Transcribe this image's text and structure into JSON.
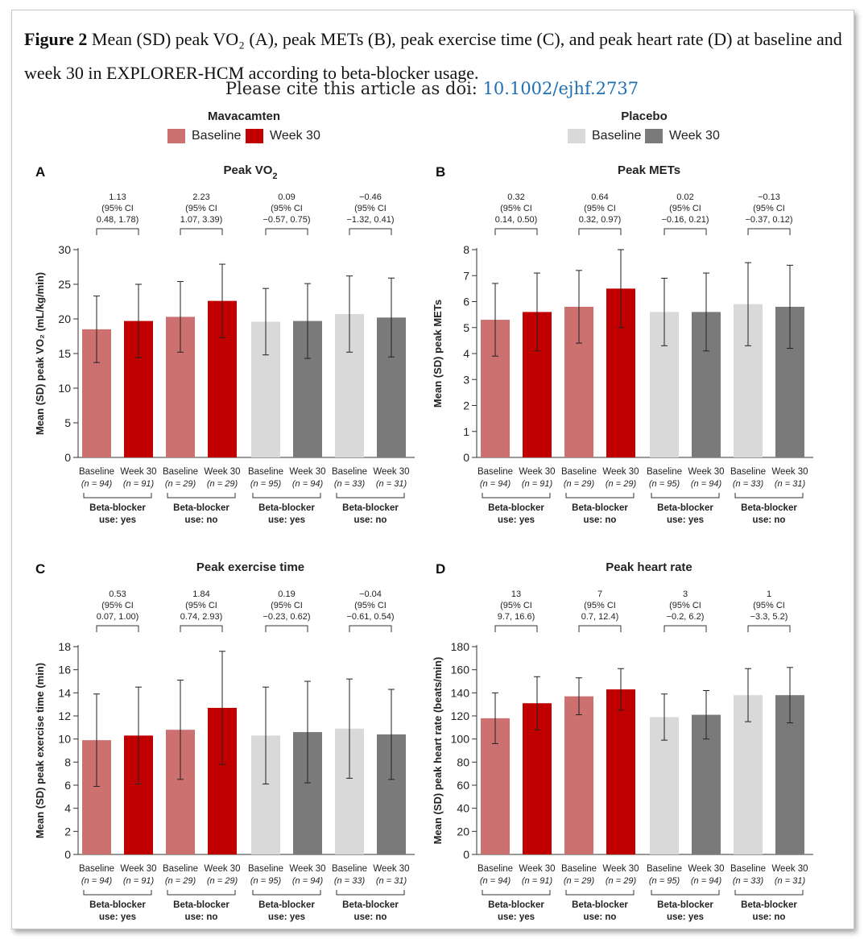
{
  "caption": {
    "label": "Figure 2",
    "text": " Mean (SD) peak VO₂ (A), peak METs (B), peak exercise time (C), and peak heart rate (D) at baseline and week 30 in EXPLORER-HCM according to beta-blocker usage.",
    "cite_prefix": "Please cite this article as doi: ",
    "doi": "10.1002/ejhf.2737"
  },
  "legend": {
    "groups": [
      {
        "title": "Mavacamten",
        "items": [
          {
            "label": "Baseline",
            "color": "#cc7070"
          },
          {
            "label": "Week 30",
            "color": "#c00000"
          }
        ]
      },
      {
        "title": "Placebo",
        "items": [
          {
            "label": "Baseline",
            "color": "#d9d9d9"
          },
          {
            "label": "Week 30",
            "color": "#7a7a7a"
          }
        ]
      }
    ]
  },
  "groups_shared": {
    "bar_labels": [
      "Baseline",
      "Week 30",
      "Baseline",
      "Week 30",
      "Baseline",
      "Week 30",
      "Baseline",
      "Week 30"
    ],
    "n_labels": [
      "(n = 94)",
      "(n = 91)",
      "(n = 29)",
      "(n = 29)",
      "(n = 95)",
      "(n = 94)",
      "(n = 33)",
      "(n = 31)"
    ],
    "group_labels": [
      [
        "Beta-blocker",
        "use: yes"
      ],
      [
        "Beta-blocker",
        "use: no"
      ],
      [
        "Beta-blocker",
        "use: yes"
      ],
      [
        "Beta-blocker",
        "use: no"
      ]
    ],
    "bar_colors": [
      "#cc7070",
      "#c00000",
      "#cc7070",
      "#c00000",
      "#d9d9d9",
      "#7a7a7a",
      "#d9d9d9",
      "#7a7a7a"
    ]
  },
  "chart_data": [
    {
      "panel": "A",
      "title": "Peak VO",
      "title_sub": "2",
      "type": "bar",
      "ylabel": "Mean (SD) peak VO₂ (mL/kg/min)",
      "ylim": [
        0,
        30
      ],
      "yticks": [
        0,
        5,
        10,
        15,
        20,
        25,
        30
      ],
      "values": [
        18.5,
        19.7,
        20.3,
        22.6,
        19.6,
        19.7,
        20.7,
        20.2
      ],
      "sd": [
        4.8,
        5.3,
        5.1,
        5.3,
        4.8,
        5.4,
        5.5,
        5.7
      ],
      "annotations": [
        [
          "1.13",
          "(95% CI",
          "0.48, 1.78)"
        ],
        [
          "2.23",
          "(95% CI",
          "1.07, 3.39)"
        ],
        [
          "0.09",
          "(95% CI",
          "−0.57, 0.75)"
        ],
        [
          "−0.46",
          "(95% CI",
          "−1.32, 0.41)"
        ]
      ]
    },
    {
      "panel": "B",
      "title": "Peak METs",
      "title_sub": "",
      "type": "bar",
      "ylabel": "Mean (SD) peak METs",
      "ylim": [
        0,
        8
      ],
      "yticks": [
        0,
        1,
        2,
        3,
        4,
        5,
        6,
        7,
        8
      ],
      "values": [
        5.3,
        5.6,
        5.8,
        6.5,
        5.6,
        5.6,
        5.9,
        5.8
      ],
      "sd": [
        1.4,
        1.5,
        1.4,
        1.5,
        1.3,
        1.5,
        1.6,
        1.6
      ],
      "annotations": [
        [
          "0.32",
          "(95% CI",
          "0.14, 0.50)"
        ],
        [
          "0.64",
          "(95% CI",
          "0.32, 0.97)"
        ],
        [
          "0.02",
          "(95% CI",
          "−0.16, 0.21)"
        ],
        [
          "−0.13",
          "(95% CI",
          "−0.37, 0.12)"
        ]
      ]
    },
    {
      "panel": "C",
      "title": "Peak exercise time",
      "title_sub": "",
      "type": "bar",
      "ylabel": "Mean (SD) peak exercise time (min)",
      "ylim": [
        0,
        18
      ],
      "yticks": [
        0,
        2,
        4,
        6,
        8,
        10,
        12,
        14,
        16,
        18
      ],
      "values": [
        9.9,
        10.3,
        10.8,
        12.7,
        10.3,
        10.6,
        10.9,
        10.4
      ],
      "sd": [
        4.0,
        4.2,
        4.3,
        4.9,
        4.2,
        4.4,
        4.3,
        3.9
      ],
      "annotations": [
        [
          "0.53",
          "(95% CI",
          "0.07, 1.00)"
        ],
        [
          "1.84",
          "(95% CI",
          "0.74, 2.93)"
        ],
        [
          "0.19",
          "(95% CI",
          "−0.23, 0.62)"
        ],
        [
          "−0.04",
          "(95% CI",
          "−0.61, 0.54)"
        ]
      ]
    },
    {
      "panel": "D",
      "title": "Peak heart rate",
      "title_sub": "",
      "type": "bar",
      "ylabel": "Mean (SD) peak heart rate (beats/min)",
      "ylim": [
        0,
        180
      ],
      "yticks": [
        0,
        20,
        40,
        60,
        80,
        100,
        120,
        140,
        160,
        180
      ],
      "values": [
        118,
        131,
        137,
        143,
        119,
        121,
        138,
        138
      ],
      "sd": [
        22,
        23,
        16,
        18,
        20,
        21,
        23,
        24
      ],
      "annotations": [
        [
          "13",
          "(95% CI",
          "9.7, 16.6)"
        ],
        [
          "7",
          "(95% CI",
          "0.7, 12.4)"
        ],
        [
          "3",
          "(95% CI",
          "−0.2, 6.2)"
        ],
        [
          "1",
          "(95% CI",
          "−3.3, 5.2)"
        ]
      ]
    }
  ]
}
